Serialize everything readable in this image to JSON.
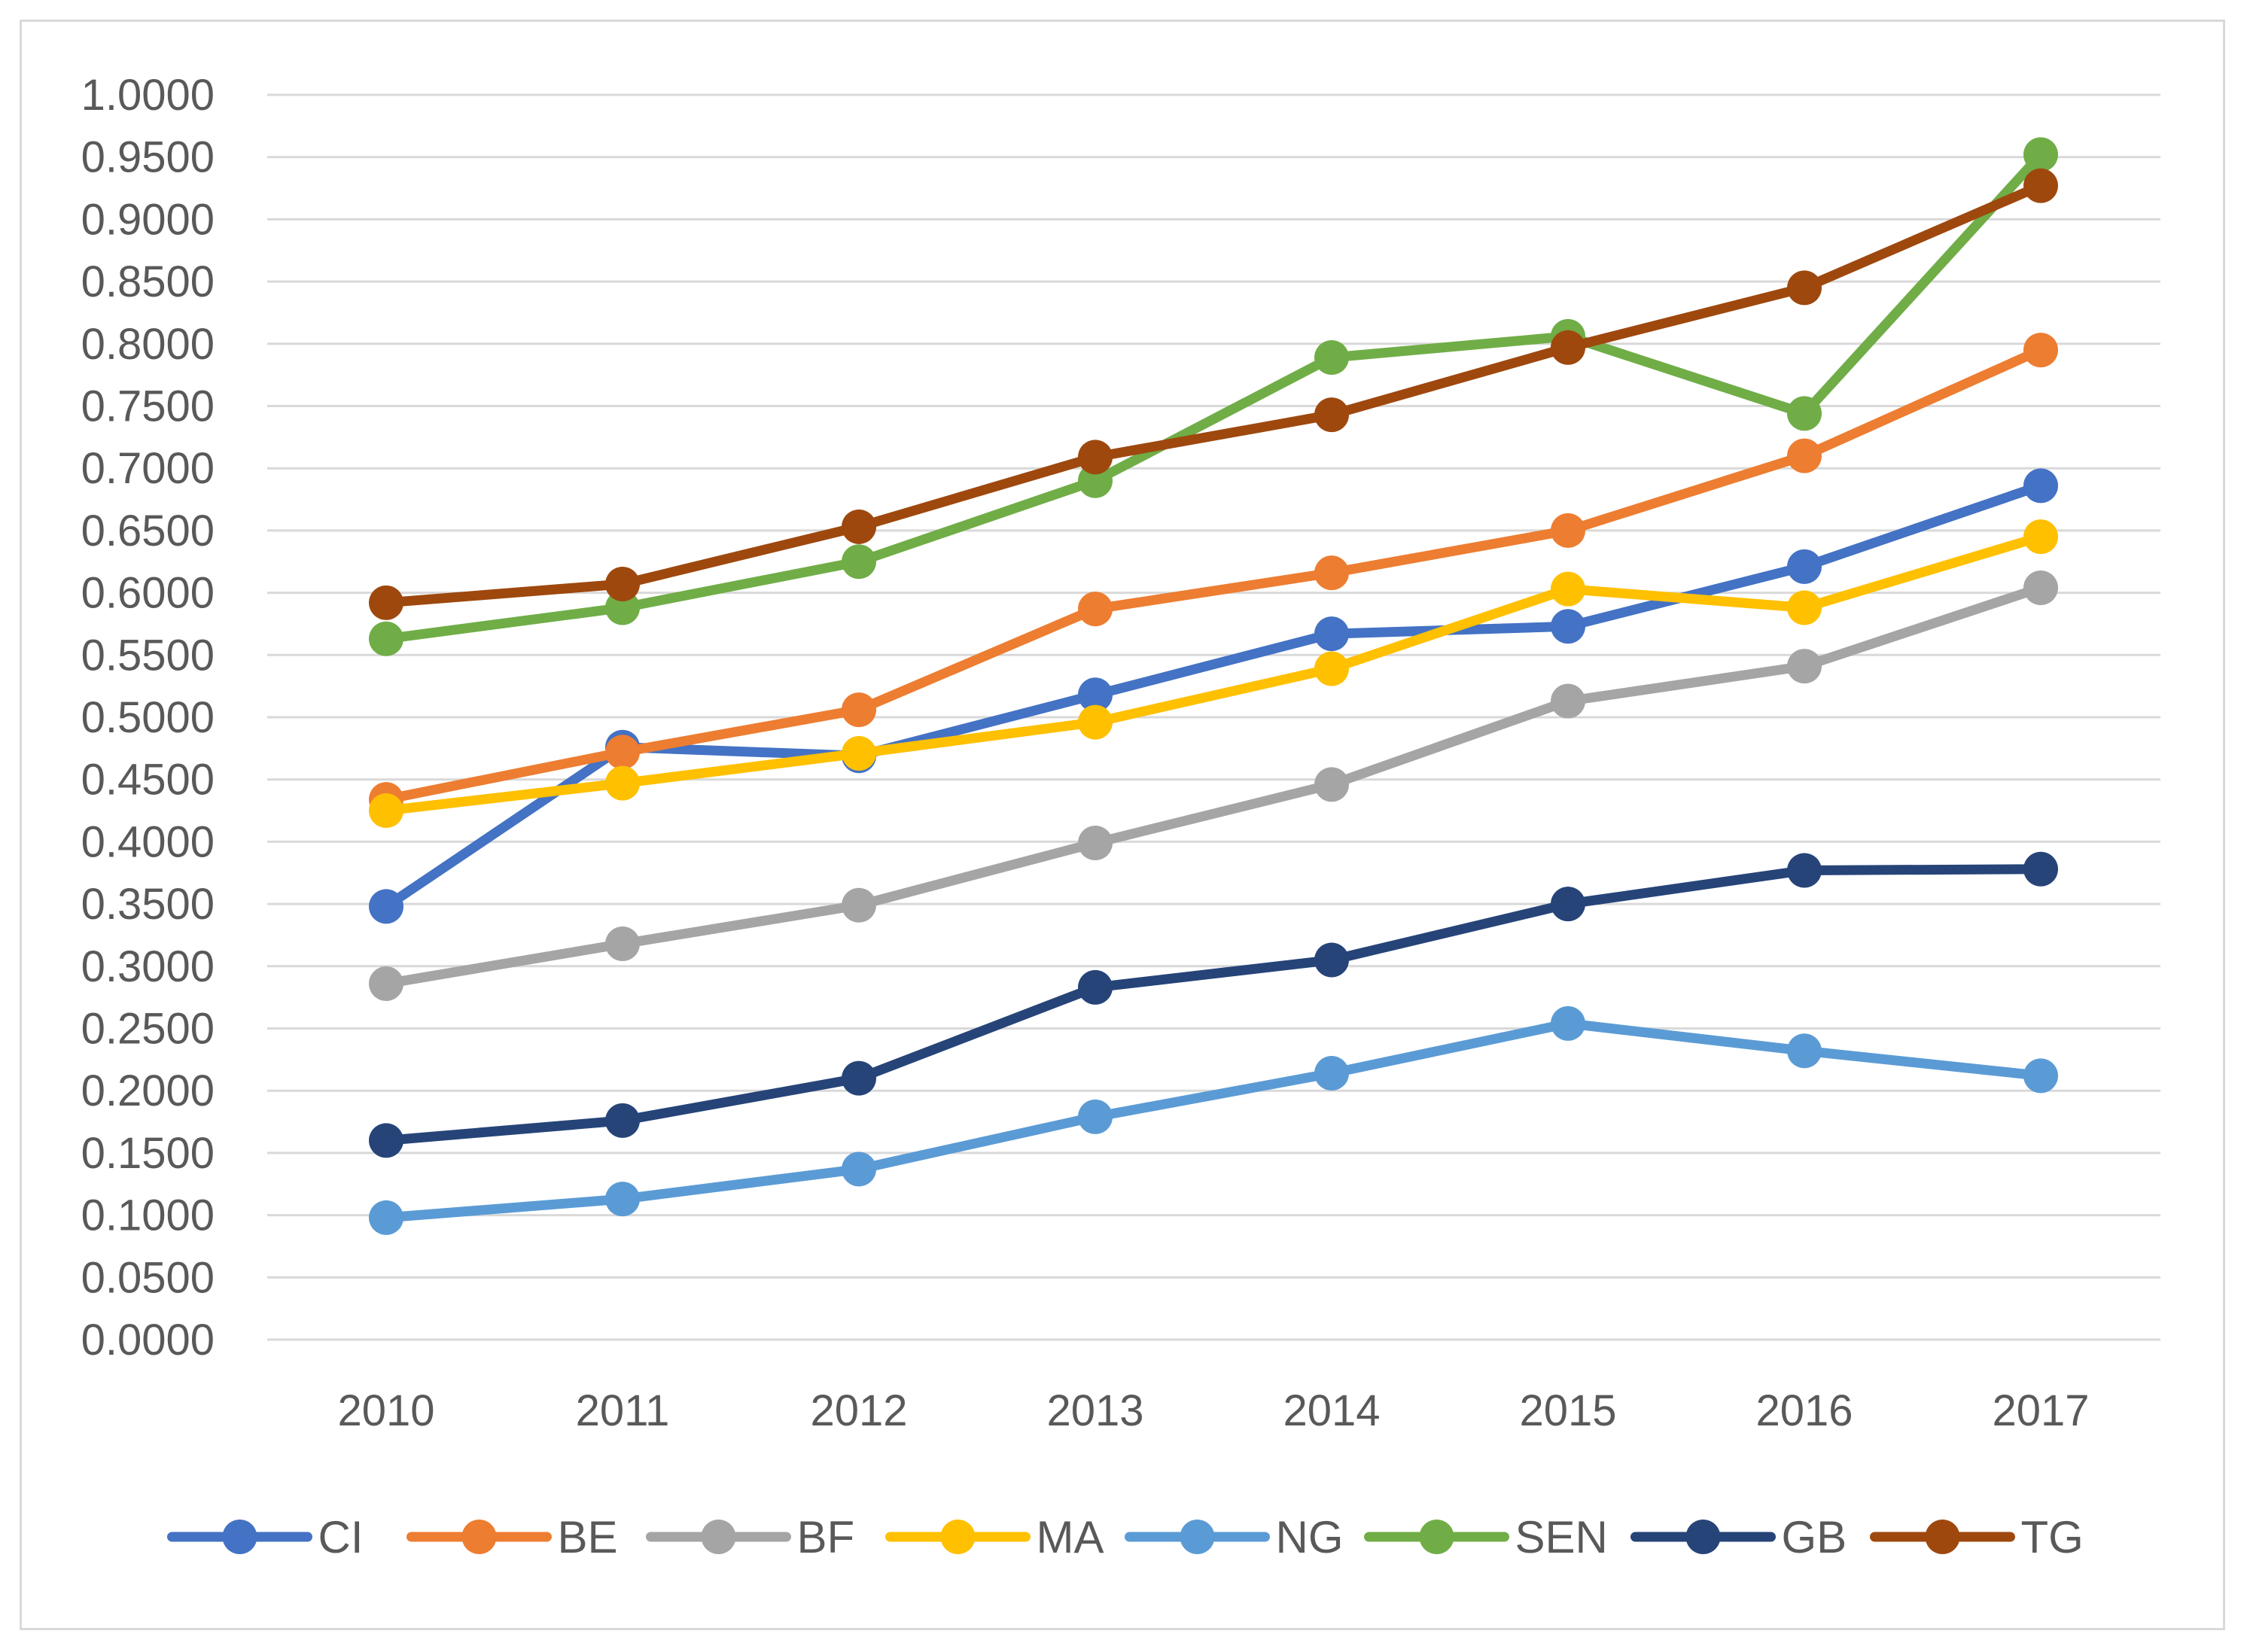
{
  "chart_data": {
    "type": "line",
    "title": "",
    "xlabel": "",
    "ylabel": "",
    "categories": [
      "2010",
      "2011",
      "2012",
      "2013",
      "2014",
      "2015",
      "2016",
      "2017"
    ],
    "ylim": [
      0,
      1
    ],
    "ytick_step": 0.05,
    "ytick_labels": [
      "0.0000",
      "0.0500",
      "0.1000",
      "0.1500",
      "0.2000",
      "0.2500",
      "0.3000",
      "0.3500",
      "0.4000",
      "0.4500",
      "0.5000",
      "0.5500",
      "0.6000",
      "0.6500",
      "0.7000",
      "0.7500",
      "0.8000",
      "0.8500",
      "0.9000",
      "0.9500",
      "1.0000"
    ],
    "grid": true,
    "legend_position": "bottom",
    "series": [
      {
        "name": "CI",
        "color": "#4472c4",
        "values": [
          0.348,
          0.476,
          0.469,
          0.518,
          0.567,
          0.573,
          0.621,
          0.686
        ]
      },
      {
        "name": "BE",
        "color": "#ed7d31",
        "values": [
          0.434,
          0.472,
          0.506,
          0.587,
          0.616,
          0.65,
          0.71,
          0.795
        ]
      },
      {
        "name": "BF",
        "color": "#a5a5a5",
        "values": [
          0.286,
          0.318,
          0.349,
          0.399,
          0.446,
          0.513,
          0.541,
          0.604
        ]
      },
      {
        "name": "MA",
        "color": "#ffc000",
        "values": [
          0.425,
          0.447,
          0.471,
          0.496,
          0.539,
          0.603,
          0.588,
          0.645
        ]
      },
      {
        "name": "NG",
        "color": "#5b9bd5",
        "values": [
          0.098,
          0.113,
          0.137,
          0.179,
          0.214,
          0.254,
          0.232,
          0.212
        ]
      },
      {
        "name": "SEN",
        "color": "#70ad47",
        "values": [
          0.563,
          0.588,
          0.625,
          0.69,
          0.789,
          0.806,
          0.744,
          0.952
        ]
      },
      {
        "name": "GB",
        "color": "#264478",
        "values": [
          0.16,
          0.176,
          0.21,
          0.283,
          0.305,
          0.35,
          0.377,
          0.378
        ]
      },
      {
        "name": "TG",
        "color": "#9e480e",
        "values": [
          0.592,
          0.607,
          0.653,
          0.709,
          0.743,
          0.797,
          0.845,
          0.927
        ]
      }
    ]
  }
}
